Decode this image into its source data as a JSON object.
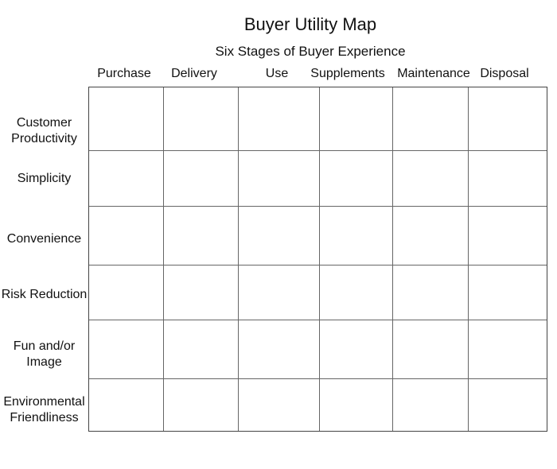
{
  "title": "Buyer Utility Map",
  "subtitle": "Six Stages of Buyer Experience",
  "columns": [
    "Purchase",
    "Delivery",
    "Use",
    "Supplements",
    "Maintenance",
    "Disposal"
  ],
  "rows": [
    [
      "Customer",
      "Productivity"
    ],
    [
      "Simplicity"
    ],
    [
      "Convenience"
    ],
    [
      "Risk Reduction"
    ],
    [
      "Fun and/or",
      "Image"
    ],
    [
      "Environmental",
      "Friendliness"
    ]
  ]
}
